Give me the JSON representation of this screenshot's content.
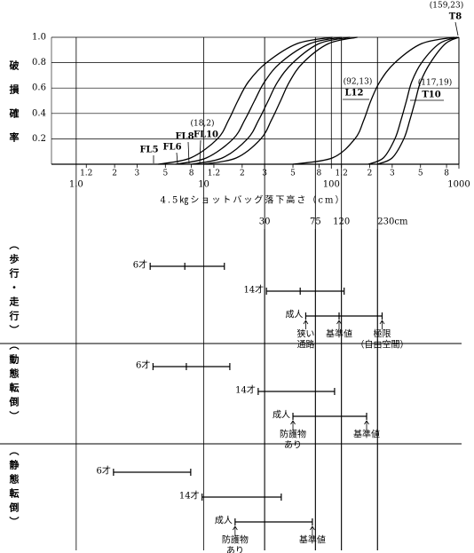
{
  "chart_data": [
    {
      "type": "line",
      "xlog": true,
      "y_label": "破損確率",
      "x_label": "4.5㎏ショットバッグ落下高さ（cm）",
      "xlim": [
        0.64,
        1000
      ],
      "ylim": [
        0,
        1
      ],
      "xticks": [
        {
          "value": 1,
          "label": "1.0"
        },
        10,
        100,
        1000
      ],
      "xticks_minor": [
        {
          "value": 1.2,
          "label": "1.2"
        },
        2,
        3,
        5,
        8,
        {
          "value": 12,
          "label": "1.2"
        },
        {
          "value": 20,
          "label": "2"
        },
        {
          "value": 30,
          "label": "3"
        },
        {
          "value": 50,
          "label": "5"
        },
        {
          "value": 80,
          "label": "8"
        },
        {
          "value": 120,
          "label": "1.2"
        },
        {
          "value": 200,
          "label": "2"
        },
        {
          "value": 300,
          "label": "3"
        },
        {
          "value": 500,
          "label": "5"
        },
        {
          "value": 800,
          "label": "8"
        }
      ],
      "yticks": [
        0.2,
        0.4,
        0.6,
        0.8,
        {
          "value": 1,
          "label": "1.0"
        }
      ],
      "grid": true,
      "series": [
        {
          "name": "FL5",
          "color": "#000000",
          "x": [
            4.4,
            7.9,
            12.8,
            15.7,
            18.5,
            22.4,
            31,
            54,
            102
          ],
          "values": [
            0,
            0.05,
            0.2,
            0.35,
            0.5,
            0.65,
            0.8,
            0.95,
            1.0
          ]
        },
        {
          "name": "FL6",
          "color": "#000000",
          "x": [
            6,
            10.5,
            17,
            21,
            25,
            30,
            40,
            68,
            120
          ],
          "values": [
            0,
            0.05,
            0.2,
            0.35,
            0.5,
            0.65,
            0.8,
            0.95,
            1.0
          ]
        },
        {
          "name": "FL8",
          "color": "#000000",
          "x": [
            8,
            14,
            22,
            27,
            32,
            38,
            50,
            80,
            140
          ],
          "values": [
            0,
            0.05,
            0.2,
            0.35,
            0.5,
            0.65,
            0.8,
            0.95,
            1.0
          ]
        },
        {
          "name": "FL10",
          "color": "#000000",
          "x": [
            10,
            18,
            28,
            34,
            40,
            47,
            60,
            95,
            160
          ],
          "values": [
            0,
            0.05,
            0.2,
            0.35,
            0.5,
            0.65,
            0.8,
            0.95,
            1.0
          ]
        },
        {
          "name": "L12",
          "color": "#000000",
          "x": [
            50,
            102,
            153,
            180,
            204,
            240,
            315,
            510,
            922
          ],
          "values": [
            0,
            0.05,
            0.2,
            0.35,
            0.5,
            0.65,
            0.8,
            0.95,
            1.0
          ]
        },
        {
          "name": "T10",
          "color": "#000000",
          "x": [
            195,
            256,
            315,
            352,
            388,
            427,
            510,
            702,
            967
          ],
          "values": [
            0,
            0.05,
            0.2,
            0.35,
            0.5,
            0.65,
            0.8,
            0.95,
            1.0
          ]
        },
        {
          "name": "T8",
          "color": "#000000",
          "x": [
            229,
            300,
            370,
            413,
            455,
            501,
            598,
            785,
            1000
          ],
          "values": [
            0,
            0.05,
            0.2,
            0.35,
            0.5,
            0.65,
            0.8,
            0.95,
            1.0
          ]
        }
      ],
      "annotations": [
        "(18,2)",
        "(92,13)",
        "(117,19)",
        "(159,23)"
      ]
    },
    {
      "type": "range",
      "ref_lines": [
        30,
        75,
        120,
        {
          "value": 230,
          "label": "230cm"
        }
      ],
      "groups": [
        {
          "label": "（歩行・走行）",
          "bars": [
            {
              "name": "6才",
              "values": [
                3.8,
                7.1,
                14.5
              ]
            },
            {
              "name": "14才",
              "values": [
                31,
                57,
                126
              ]
            },
            {
              "name": "成人",
              "values": [
                63,
                115,
                250
              ],
              "notes": [
                [
                  "狭い",
                  "通路"
                ],
                [
                  "基準値"
                ],
                [
                  "極限",
                  "（自由空間）"
                ]
              ]
            }
          ]
        },
        {
          "label": "（動態転倒）",
          "bars": [
            {
              "name": "6才",
              "values": [
                4,
                7.3,
                16
              ]
            },
            {
              "name": "14才",
              "values": [
                26.7,
                106
              ]
            },
            {
              "name": "成人",
              "values": [
                50,
                189
              ],
              "notes": [
                [
                  "防護物",
                  "あり"
                ],
                [
                  "基準値"
                ]
              ]
            }
          ]
        },
        {
          "label": "（静態転倒）",
          "bars": [
            {
              "name": "6才",
              "values": [
                1.96,
                7.9
              ]
            },
            {
              "name": "14才",
              "values": [
                9.7,
                40.5
              ]
            },
            {
              "name": "成人",
              "values": [
                17.6,
                71
              ],
              "notes": [
                [
                  "防護物",
                  "あり"
                ],
                [
                  "基準値"
                ]
              ]
            }
          ]
        }
      ]
    }
  ]
}
